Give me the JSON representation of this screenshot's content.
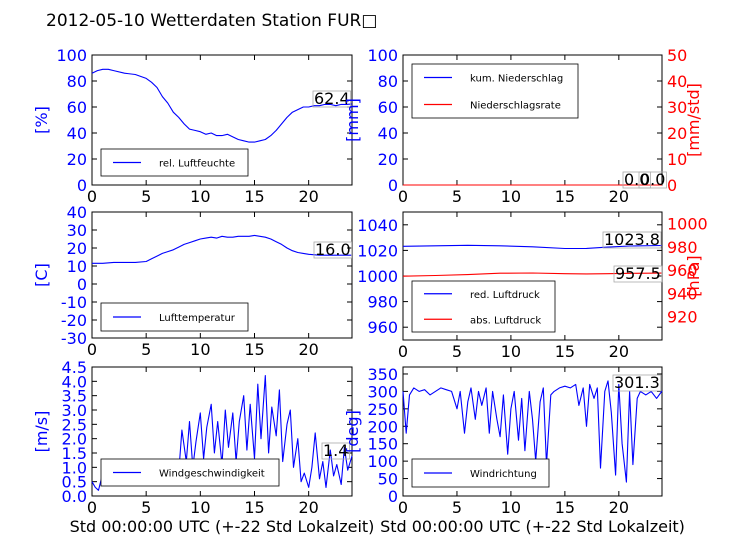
{
  "page": {
    "title": "2012-05-10 Wetterdaten Station FUR□",
    "xlabel": "Std 00:00:00 UTC (+-22 Std Lokalzeit)"
  },
  "colors": {
    "primary": "#0000ff",
    "secondary": "#ff0000",
    "wind_light": "#8a8aff",
    "axis": "#000000"
  },
  "chart_data": [
    {
      "id": "humidity",
      "type": "line",
      "xlim": [
        0,
        24
      ],
      "ylim": [
        0,
        100
      ],
      "yticks": [
        0,
        20,
        40,
        60,
        80,
        100
      ],
      "xticks": [
        0,
        5,
        10,
        15,
        20
      ],
      "ylabel": "[%]",
      "legend_position": "lower-left",
      "series": [
        {
          "name": "rel. Luftfeuchte",
          "color": "#0000ff",
          "x": [
            0,
            0.5,
            1,
            1.5,
            2,
            3,
            4,
            5,
            5.5,
            6,
            6.5,
            7,
            7.5,
            8,
            8.5,
            9,
            9.5,
            10,
            10.5,
            11,
            11.5,
            12,
            12.5,
            13,
            13.5,
            14,
            14.5,
            15,
            15.5,
            16,
            16.5,
            17,
            17.5,
            18,
            18.5,
            19,
            19.5,
            20,
            20.5,
            21,
            21.5,
            22,
            22.5,
            23,
            23.5,
            24
          ],
          "y": [
            86,
            88,
            89,
            89,
            88,
            86,
            85,
            82,
            79,
            75,
            68,
            63,
            56,
            52,
            47,
            43,
            42,
            41,
            39,
            40,
            38,
            38,
            39,
            37,
            35,
            34,
            33,
            33,
            34,
            35,
            38,
            42,
            47,
            52,
            56,
            58,
            60,
            60,
            61,
            61,
            62,
            62,
            61,
            62,
            62,
            62.4
          ]
        }
      ],
      "annotations": [
        "62.4"
      ]
    },
    {
      "id": "precip",
      "type": "line",
      "xlim": [
        0,
        24
      ],
      "ylim": [
        0,
        100
      ],
      "yticks": [
        0,
        20,
        40,
        60,
        80,
        100
      ],
      "xticks": [
        0,
        5,
        10,
        15,
        20
      ],
      "ylabel": "[mm]",
      "y2lim": [
        0,
        50
      ],
      "y2ticks": [
        0,
        10,
        20,
        30,
        40,
        50
      ],
      "y2label": "[mm/std]",
      "legend_position": "upper-left",
      "series": [
        {
          "name": "kum. Niederschlag",
          "color": "#0000ff",
          "axis": "left",
          "x": [
            0,
            24
          ],
          "y": [
            0,
            0
          ]
        },
        {
          "name": "Niederschlagsrate",
          "color": "#ff0000",
          "axis": "right",
          "x": [
            0,
            24
          ],
          "y": [
            0,
            0
          ]
        }
      ],
      "annotations": [
        "0.0",
        "0.0"
      ]
    },
    {
      "id": "temperature",
      "type": "line",
      "xlim": [
        0,
        24
      ],
      "ylim": [
        -30,
        40
      ],
      "yticks": [
        -30,
        -20,
        -10,
        0,
        10,
        20,
        30,
        40
      ],
      "xticks": [
        0,
        5,
        10,
        15,
        20
      ],
      "ylabel": "[C]",
      "legend_position": "lower-left",
      "series": [
        {
          "name": "Lufttemperatur",
          "color": "#0000ff",
          "x": [
            0,
            1,
            2,
            3,
            4,
            5,
            5.5,
            6,
            6.5,
            7,
            7.5,
            8,
            8.5,
            9,
            9.5,
            10,
            10.5,
            11,
            11.5,
            12,
            12.5,
            13,
            13.5,
            14,
            14.5,
            15,
            15.5,
            16,
            16.5,
            17,
            17.5,
            18,
            18.5,
            19,
            19.5,
            20,
            21,
            22,
            23,
            24
          ],
          "y": [
            11.5,
            11.5,
            12,
            12,
            12,
            12.5,
            14,
            15.5,
            17,
            18,
            19,
            20.5,
            22,
            23,
            24,
            25,
            25.5,
            26,
            25.5,
            26.5,
            26,
            26,
            26.5,
            26.5,
            26.5,
            27,
            26.5,
            26,
            25,
            23.5,
            22,
            20,
            18.5,
            17.5,
            17,
            16.5,
            16,
            16,
            16,
            16
          ]
        }
      ],
      "annotations": [
        "16.0"
      ]
    },
    {
      "id": "pressure",
      "type": "line",
      "xlim": [
        0,
        24
      ],
      "ylim": [
        950,
        1050
      ],
      "yticks": [
        960,
        980,
        1000,
        1020,
        1040
      ],
      "xticks": [
        0,
        5,
        10,
        15,
        20
      ],
      "y2lim": [
        900,
        1010
      ],
      "y2ticks": [
        920,
        940,
        960,
        980,
        1000
      ],
      "y2label": "[hPa]",
      "legend_position": "lower-left",
      "series": [
        {
          "name": "red. Luftdruck",
          "color": "#0000ff",
          "axis": "left",
          "x": [
            0,
            3,
            6,
            9,
            12,
            15,
            17,
            19,
            21,
            24
          ],
          "y": [
            1023.2,
            1023.6,
            1024,
            1023.6,
            1022.8,
            1021.5,
            1021.6,
            1022.6,
            1023.4,
            1023.8
          ]
        },
        {
          "name": "abs. Luftdruck",
          "color": "#ff0000",
          "axis": "right",
          "x": [
            0,
            3,
            6,
            9,
            12,
            15,
            17,
            19,
            21,
            24
          ],
          "y": [
            954.8,
            955.4,
            956.2,
            957.4,
            957.6,
            957,
            956.8,
            957,
            957.3,
            957.5
          ]
        }
      ],
      "annotations": [
        "1023.8",
        "957.5"
      ]
    },
    {
      "id": "windspeed",
      "type": "line",
      "xlim": [
        0,
        24
      ],
      "ylim": [
        0,
        4.5
      ],
      "yticks": [
        0.0,
        0.5,
        1.0,
        1.5,
        2.0,
        2.5,
        3.0,
        3.5,
        4.0,
        4.5
      ],
      "xticks": [
        0,
        5,
        10,
        15,
        20
      ],
      "ylabel": "[m/s]",
      "xlabel": "Std 00:00:00 UTC (+-22 Std Lokalzeit)",
      "legend_position": "lower-left",
      "series": [
        {
          "name": "Windgeschwindigkeit",
          "color": "#0000ff",
          "x": [
            0,
            0.3,
            0.6,
            1,
            1.5,
            2,
            2.5,
            3,
            3.5,
            4,
            4.5,
            5,
            5.5,
            6,
            6.5,
            7,
            7.5,
            8,
            8.3,
            8.7,
            9,
            9.3,
            9.6,
            10,
            10.3,
            10.6,
            11,
            11.3,
            11.6,
            12,
            12.3,
            12.6,
            13,
            13.3,
            13.6,
            14,
            14.3,
            14.6,
            15,
            15.3,
            15.6,
            16,
            16.3,
            16.6,
            17,
            17.3,
            17.6,
            18,
            18.3,
            18.6,
            19,
            19.3,
            19.6,
            20,
            20.3,
            20.6,
            21,
            21.3,
            21.6,
            22,
            22.3,
            22.6,
            23,
            23.3,
            23.6,
            24
          ],
          "y": [
            0.5,
            0.3,
            0.2,
            0.8,
            0.9,
            0.7,
            0.9,
            1.0,
            0.8,
            1.0,
            0.7,
            0.9,
            0.8,
            0.6,
            1.0,
            0.7,
            0.5,
            0.8,
            2.3,
            1.2,
            2.6,
            1.0,
            1.9,
            2.9,
            1.3,
            2.4,
            3.2,
            1.5,
            2.6,
            1.1,
            3.0,
            1.7,
            2.9,
            1.2,
            2.6,
            3.5,
            1.6,
            3.2,
            1.3,
            3.9,
            2.0,
            4.2,
            1.5,
            3.1,
            2.1,
            3.7,
            1.2,
            2.5,
            3.0,
            1.0,
            2.0,
            0.5,
            0.8,
            0.3,
            1.0,
            2.2,
            0.6,
            1.2,
            0.3,
            1.6,
            0.7,
            1.1,
            0.4,
            1.7,
            0.9,
            1.4
          ]
        }
      ],
      "annotations": [
        "1.4"
      ]
    },
    {
      "id": "winddir",
      "type": "line",
      "xlim": [
        0,
        24
      ],
      "ylim": [
        0,
        370
      ],
      "yticks": [
        0,
        50,
        100,
        150,
        200,
        250,
        300,
        350
      ],
      "xticks": [
        0,
        5,
        10,
        15,
        20
      ],
      "ylabel": "[deg]",
      "xlabel": "Std 00:00:00 UTC (+-22 Std Lokalzeit)",
      "legend_position": "lower-left",
      "series": [
        {
          "name": "Windrichtung",
          "color": "#0000ff",
          "x": [
            0,
            0.3,
            0.6,
            1,
            1.5,
            2,
            2.5,
            3,
            3.5,
            4,
            4.5,
            5,
            5.3,
            5.7,
            6,
            6.3,
            6.7,
            7,
            7.3,
            7.7,
            8,
            8.3,
            8.7,
            9,
            9.3,
            9.7,
            10,
            10.3,
            10.7,
            11,
            11.3,
            11.7,
            12,
            12.3,
            12.7,
            13,
            13.3,
            13.7,
            14,
            14.5,
            15,
            15.5,
            16,
            16.3,
            16.7,
            17,
            17.3,
            17.7,
            18,
            18.3,
            18.7,
            19,
            19.3,
            19.7,
            20,
            20.3,
            20.7,
            21,
            21.3,
            21.7,
            22,
            22.5,
            23,
            23.5,
            24
          ],
          "y": [
            300,
            180,
            290,
            310,
            300,
            305,
            290,
            300,
            310,
            305,
            300,
            250,
            300,
            180,
            270,
            310,
            220,
            300,
            260,
            310,
            180,
            300,
            220,
            170,
            290,
            120,
            250,
            300,
            160,
            280,
            130,
            300,
            220,
            100,
            270,
            310,
            90,
            290,
            300,
            310,
            315,
            310,
            320,
            260,
            310,
            200,
            320,
            280,
            310,
            80,
            300,
            330,
            240,
            60,
            320,
            150,
            40,
            300,
            90,
            280,
            300,
            290,
            300,
            280,
            301.3
          ]
        }
      ],
      "annotations": [
        "301.3"
      ]
    }
  ]
}
